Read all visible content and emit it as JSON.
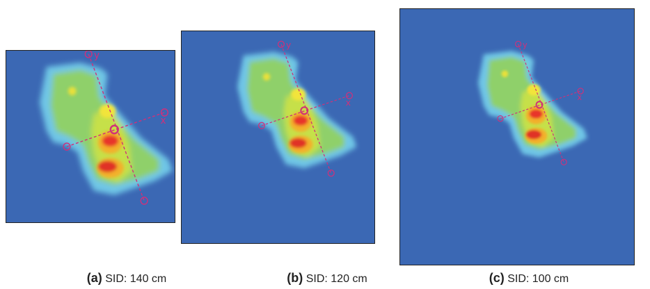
{
  "panels": [
    {
      "label": "(a)",
      "caption": "SID: 140 cm",
      "x_axis": "x",
      "y_axis": "y"
    },
    {
      "label": "(b)",
      "caption": "SID: 120 cm",
      "x_axis": "x",
      "y_axis": "y"
    },
    {
      "label": "(c)",
      "caption": "SID: 100 cm",
      "x_axis": "x",
      "y_axis": "y"
    }
  ]
}
